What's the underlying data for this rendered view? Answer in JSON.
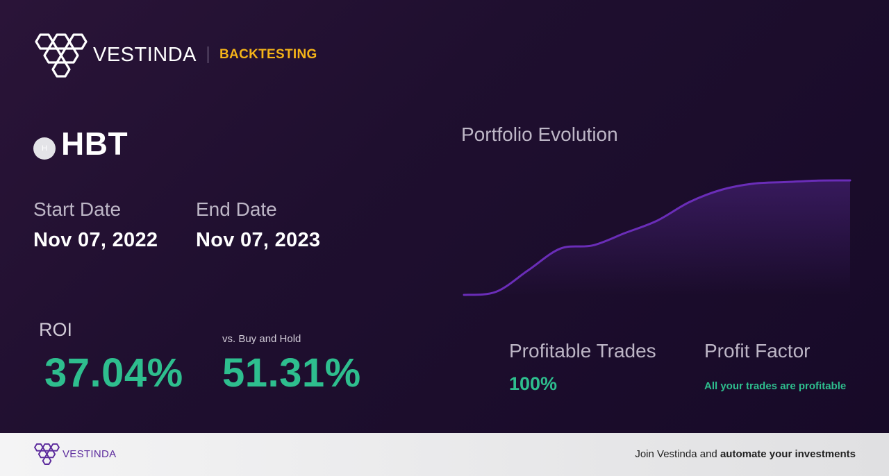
{
  "brand": {
    "name": "VESTINDA",
    "tag": "BACKTESTING"
  },
  "asset": {
    "badge": "H",
    "symbol": "HBT"
  },
  "dates": {
    "start_label": "Start Date",
    "start_value": "Nov 07, 2022",
    "end_label": "End Date",
    "end_value": "Nov 07, 2023"
  },
  "roi": {
    "label": "ROI",
    "value": "37.04%"
  },
  "buy_hold": {
    "label": "vs. Buy and Hold",
    "value": "51.31%"
  },
  "chart": {
    "title": "Portfolio Evolution"
  },
  "chart_data": {
    "type": "area",
    "x": [
      0,
      1,
      2,
      3,
      4,
      5,
      6,
      7,
      8,
      9,
      10,
      11,
      12
    ],
    "values": [
      100,
      101,
      108,
      115,
      116,
      120,
      124,
      130,
      134,
      136,
      136.5,
      137,
      137.04
    ],
    "title": "Portfolio Evolution",
    "xlabel": "",
    "ylabel": "",
    "ylim": [
      100,
      137.04
    ],
    "grid": false,
    "color": "#6a2db8"
  },
  "trades": {
    "label": "Profitable Trades",
    "value": "100%"
  },
  "profit_factor": {
    "label": "Profit Factor",
    "value": "All your trades are profitable"
  },
  "footer": {
    "brand": "VESTINDA",
    "cta_prefix": "Join Vestinda and ",
    "cta_bold": "automate your investments"
  },
  "colors": {
    "accent": "#f5b418",
    "positive": "#2ebe8e",
    "line": "#6a2db8",
    "background": "#1f0f2f"
  }
}
